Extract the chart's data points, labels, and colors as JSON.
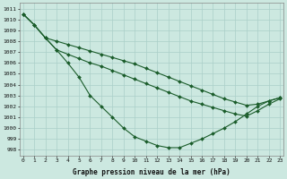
{
  "title": "Graphe pression niveau de la mer (hPa)",
  "background_color": "#cce8e0",
  "grid_color": "#aacfc8",
  "line_color": "#1a5c2a",
  "xlim": [
    -0.3,
    23.3
  ],
  "ylim": [
    997.5,
    1011.5
  ],
  "xticks": [
    0,
    1,
    2,
    3,
    4,
    5,
    6,
    7,
    8,
    9,
    10,
    11,
    12,
    13,
    14,
    15,
    16,
    17,
    18,
    19,
    20,
    21,
    22,
    23
  ],
  "yticks": [
    998,
    999,
    1000,
    1001,
    1002,
    1003,
    1004,
    1005,
    1006,
    1007,
    1008,
    1009,
    1010,
    1011
  ],
  "series_a": [
    1010.5,
    1009.5,
    1008.3,
    1007.2,
    1006.0,
    1004.7,
    1003.0,
    1002.0,
    1001.0,
    1000.0,
    999.2,
    998.8,
    998.4,
    998.2,
    998.2,
    998.6,
    999.0,
    999.5,
    1000.0,
    1000.6,
    1001.3,
    1002.0,
    1002.5,
    1002.8
  ],
  "series_b": [
    1010.5,
    1009.5,
    1008.3,
    1007.2,
    1006.8,
    1006.4,
    1006.0,
    1005.7,
    1005.3,
    1004.9,
    1004.5,
    1004.1,
    1003.7,
    1003.3,
    1002.9,
    1002.5,
    1002.2,
    1001.9,
    1001.6,
    1001.3,
    1001.1,
    1001.6,
    1002.2,
    1002.7
  ],
  "series_c": [
    1010.5,
    1009.5,
    1008.3,
    1008.0,
    1007.7,
    1007.4,
    1007.1,
    1006.8,
    1006.5,
    1006.2,
    1005.9,
    1005.5,
    1005.1,
    1004.7,
    1004.3,
    1003.9,
    1003.5,
    1003.1,
    1002.7,
    1002.4,
    1002.1,
    1002.2,
    1002.5,
    1002.8
  ],
  "xlabel_fontsize": 5.5,
  "tick_fontsize": 4.5
}
